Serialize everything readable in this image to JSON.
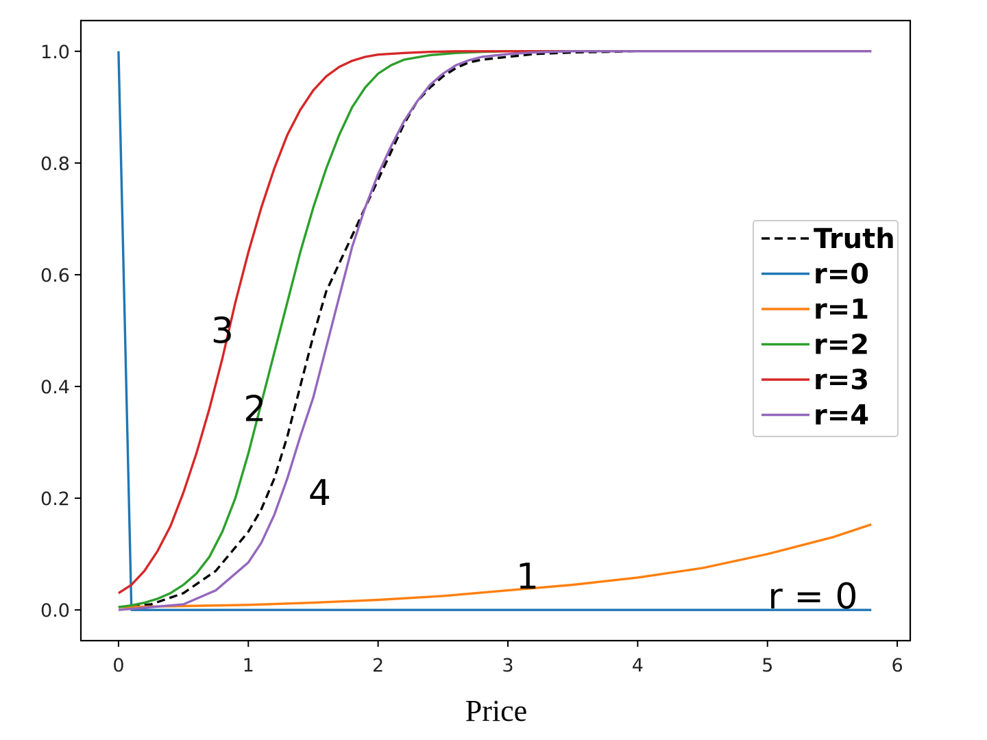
{
  "chart_data": {
    "type": "line",
    "title": "",
    "xlabel": "Price",
    "ylabel": "",
    "xlim": [
      -0.29,
      6.1
    ],
    "ylim": [
      -0.055,
      1.055
    ],
    "xticks": [
      0,
      1,
      2,
      3,
      4,
      5,
      6
    ],
    "xtick_labels": [
      "0",
      "1",
      "2",
      "3",
      "4",
      "5",
      "6"
    ],
    "yticks": [
      0.0,
      0.2,
      0.4,
      0.6,
      0.8,
      1.0
    ],
    "ytick_labels": [
      "0.0",
      "0.2",
      "0.4",
      "0.6",
      "0.8",
      "1.0"
    ],
    "grid": false,
    "legend_position": "center-right",
    "series": [
      {
        "name": "Truth",
        "color": "#000000",
        "dash": "dashed",
        "x": [
          0,
          0.25,
          0.5,
          0.75,
          1.0,
          1.1,
          1.2,
          1.3,
          1.4,
          1.5,
          1.6,
          1.7,
          1.8,
          1.9,
          2.0,
          2.1,
          2.2,
          2.3,
          2.4,
          2.5,
          2.6,
          2.7,
          2.8,
          3.0,
          3.2,
          3.5,
          4.0,
          5.0,
          5.8
        ],
        "y": [
          0.005,
          0.01,
          0.03,
          0.07,
          0.14,
          0.18,
          0.235,
          0.31,
          0.4,
          0.49,
          0.57,
          0.62,
          0.67,
          0.72,
          0.77,
          0.82,
          0.87,
          0.91,
          0.935,
          0.955,
          0.97,
          0.98,
          0.985,
          0.99,
          0.995,
          0.998,
          1.0,
          1.0,
          1.0
        ]
      },
      {
        "name": "r=0",
        "color": "#1f77b4",
        "dash": "solid",
        "x": [
          0,
          0.1,
          0.5,
          1,
          2,
          3,
          4,
          5,
          5.8
        ],
        "y": [
          1.0,
          0.0,
          0.0,
          0.0,
          0.0,
          0.0,
          0.0,
          0.0,
          0.0
        ]
      },
      {
        "name": "r=1",
        "color": "#ff7f0e",
        "dash": "solid",
        "x": [
          0,
          0.5,
          1,
          1.5,
          2,
          2.5,
          3,
          3.5,
          4,
          4.5,
          5,
          5.5,
          5.8
        ],
        "y": [
          0.005,
          0.007,
          0.009,
          0.013,
          0.018,
          0.025,
          0.035,
          0.045,
          0.058,
          0.075,
          0.1,
          0.13,
          0.153
        ]
      },
      {
        "name": "r=2",
        "color": "#2ca02c",
        "dash": "solid",
        "x": [
          0,
          0.1,
          0.2,
          0.3,
          0.4,
          0.5,
          0.6,
          0.7,
          0.8,
          0.9,
          1.0,
          1.1,
          1.2,
          1.3,
          1.4,
          1.5,
          1.6,
          1.7,
          1.8,
          1.9,
          2.0,
          2.1,
          2.2,
          2.4,
          2.6,
          2.8,
          3.0,
          3.5,
          4.0,
          5.0,
          5.8
        ],
        "y": [
          0.005,
          0.008,
          0.013,
          0.02,
          0.03,
          0.045,
          0.065,
          0.095,
          0.14,
          0.2,
          0.28,
          0.37,
          0.46,
          0.55,
          0.64,
          0.72,
          0.79,
          0.85,
          0.9,
          0.935,
          0.96,
          0.975,
          0.985,
          0.993,
          0.997,
          0.999,
          1.0,
          1.0,
          1.0,
          1.0,
          1.0
        ]
      },
      {
        "name": "r=3",
        "color": "#d62728",
        "dash": "solid",
        "x": [
          0,
          0.1,
          0.2,
          0.3,
          0.4,
          0.5,
          0.6,
          0.7,
          0.8,
          0.9,
          1.0,
          1.1,
          1.2,
          1.3,
          1.4,
          1.5,
          1.6,
          1.7,
          1.8,
          1.9,
          2.0,
          2.2,
          2.4,
          2.6,
          3.0,
          3.5,
          4.0,
          5.0,
          5.8
        ],
        "y": [
          0.03,
          0.045,
          0.07,
          0.105,
          0.15,
          0.21,
          0.28,
          0.36,
          0.45,
          0.55,
          0.64,
          0.72,
          0.79,
          0.85,
          0.895,
          0.93,
          0.955,
          0.972,
          0.983,
          0.99,
          0.994,
          0.997,
          0.999,
          1.0,
          1.0,
          1.0,
          1.0,
          1.0,
          1.0
        ]
      },
      {
        "name": "r=4",
        "color": "#9467bd",
        "dash": "solid",
        "x": [
          0,
          0.5,
          0.75,
          1.0,
          1.1,
          1.2,
          1.3,
          1.4,
          1.5,
          1.6,
          1.7,
          1.8,
          1.9,
          2.0,
          2.1,
          2.2,
          2.3,
          2.4,
          2.5,
          2.6,
          2.7,
          2.8,
          3.0,
          3.2,
          3.5,
          4.0,
          5.0,
          5.8
        ],
        "y": [
          0.0,
          0.01,
          0.035,
          0.085,
          0.12,
          0.17,
          0.235,
          0.31,
          0.38,
          0.47,
          0.56,
          0.65,
          0.72,
          0.78,
          0.83,
          0.875,
          0.91,
          0.94,
          0.96,
          0.975,
          0.984,
          0.99,
          0.995,
          0.998,
          1.0,
          1.0,
          1.0,
          1.0
        ]
      }
    ],
    "annotations": [
      {
        "text": "3",
        "x": 0.8,
        "y": 0.5
      },
      {
        "text": "2",
        "x": 1.05,
        "y": 0.36
      },
      {
        "text": "4",
        "x": 1.55,
        "y": 0.21
      },
      {
        "text": "1",
        "x": 3.15,
        "y": 0.06
      },
      {
        "text": "r = 0",
        "x": 5.35,
        "y": 0.025
      }
    ]
  }
}
